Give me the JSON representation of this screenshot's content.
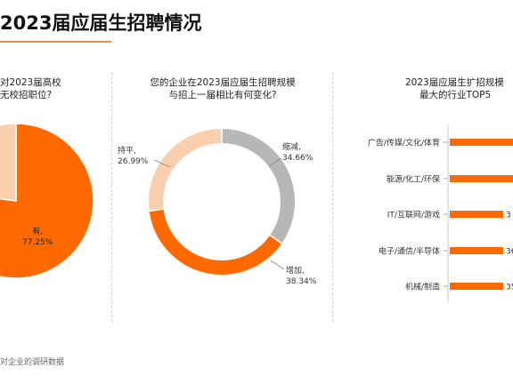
{
  "page": {
    "title": "2023届应届生招聘情况",
    "source": "对企业的调研数据"
  },
  "colors": {
    "orange": "#ff6a00",
    "peach": "#f9cfae",
    "gray": "#b7b7b7",
    "accent_line": "#f28a3c"
  },
  "chart_data": [
    {
      "type": "pie",
      "question": [
        "对2023届高校",
        "无校招职位?"
      ],
      "slices": [
        {
          "label": "有,",
          "value": 77.25,
          "value_label": "77.25%",
          "color": "#ff6a00"
        },
        {
          "label": "",
          "value": 22.75,
          "value_label": "",
          "color": "#f9cfae"
        }
      ]
    },
    {
      "type": "pie",
      "donut": true,
      "question": [
        "您的企业在2023届应届生招聘规模",
        "与招上一届相比有何变化?"
      ],
      "slices": [
        {
          "label": "缩减,",
          "value": 34.66,
          "value_label": "34.66%",
          "color": "#b7b7b7"
        },
        {
          "label": "增加,",
          "value": 38.34,
          "value_label": "38.34%",
          "color": "#ff6a00"
        },
        {
          "label": "持平,",
          "value": 26.99,
          "value_label": "26.99%",
          "color": "#f9cfae"
        }
      ]
    },
    {
      "type": "bar",
      "orientation": "horizontal",
      "question": [
        "2023届应届生扩招规模",
        "最大的行业TOP5"
      ],
      "categories": [
        "广告/传媒/文化/体育",
        "能源/化工/环保",
        "IT/互联网/游戏",
        "电子/通信/半导体",
        "机械/制造"
      ],
      "value_labels": [
        "",
        "",
        "3",
        "36",
        "35."
      ],
      "color": "#ff6a00"
    }
  ]
}
